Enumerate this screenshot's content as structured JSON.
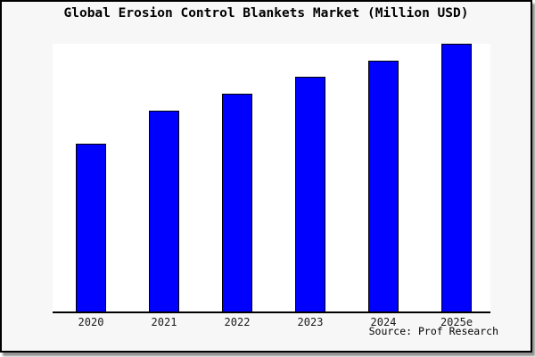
{
  "title": "Global Erosion Control Blankets Market (Million USD)",
  "source": "Source: Prof Research",
  "colors": {
    "bar_fill": "#0000ff",
    "bar_border": "#000000",
    "canvas_background": "#f7f7f7",
    "plot_background": "#ffffff",
    "axis": "#000000",
    "frame_border": "#000000",
    "title_text": "#000000",
    "tick_text": "#1a1a1a"
  },
  "chart_data": {
    "type": "bar",
    "title": "Global Erosion Control Blankets Market (Million USD)",
    "categories": [
      "2020",
      "2021",
      "2022",
      "2023",
      "2024",
      "2025e"
    ],
    "values": [
      62.7,
      75.0,
      81.3,
      87.7,
      93.7,
      100.0
    ],
    "values_note": "No y-axis scale shown in chart; values are relative bar heights indexed to 2025e = 100",
    "xlabel": "",
    "ylabel": "",
    "ylim": [
      0,
      100
    ],
    "grid": false,
    "legend": false,
    "spines": "bottom axis line only",
    "annotations": [
      "Source: Prof Research"
    ]
  }
}
